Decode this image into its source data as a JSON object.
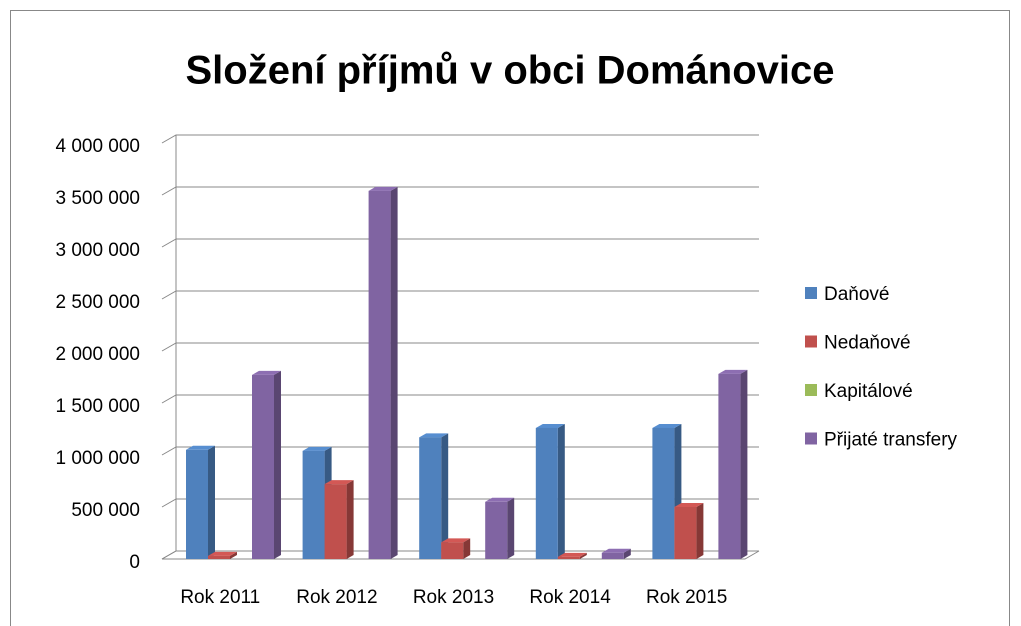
{
  "chart_data": {
    "type": "bar3d",
    "title": "Složení příjmů v obci Dománovice",
    "categories": [
      "Rok 2011",
      "Rok 2012",
      "Rok 2013",
      "Rok 2014",
      "Rok 2015"
    ],
    "series": [
      {
        "name": "Daňové",
        "color": "#4f81bd",
        "values": [
          1050000,
          1040000,
          1170000,
          1260000,
          1260000
        ]
      },
      {
        "name": "Nedaňové",
        "color": "#c0504d",
        "values": [
          30000,
          720000,
          160000,
          20000,
          500000
        ]
      },
      {
        "name": "Kapitálové",
        "color": "#9bbb59",
        "values": [
          0,
          0,
          0,
          0,
          0
        ]
      },
      {
        "name": "Přijaté transfery",
        "color": "#8064a2",
        "values": [
          1770000,
          3540000,
          550000,
          60000,
          1780000
        ]
      }
    ],
    "ylim": [
      0,
      4000000
    ],
    "yticks": [
      0,
      {
        "value": 500000,
        "label": "500 000"
      },
      {
        "value": 1000000,
        "label": "1 000 000"
      },
      {
        "value": 1500000,
        "label": "1 500 000"
      },
      {
        "value": 2000000,
        "label": "2 000 000"
      },
      {
        "value": 2500000,
        "label": "2 500 000"
      },
      {
        "value": 3000000,
        "label": "3 000 000"
      },
      {
        "value": 3500000,
        "label": "3 500 000"
      },
      {
        "value": 4000000,
        "label": "4 000 000"
      }
    ],
    "grid": true,
    "legend": "right"
  }
}
